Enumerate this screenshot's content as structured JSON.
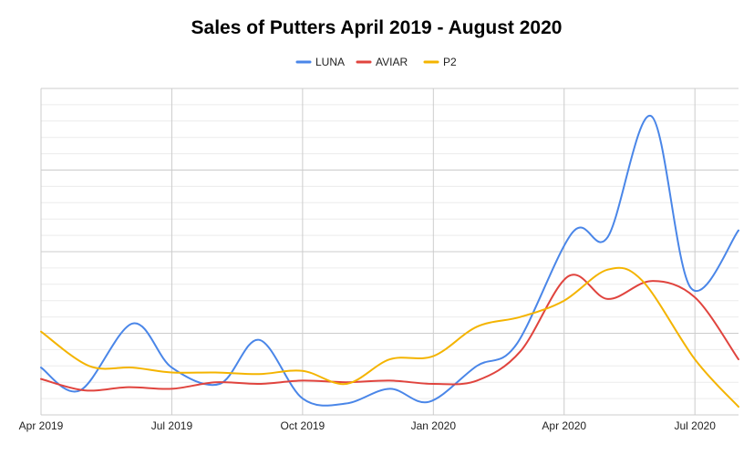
{
  "chart_data": {
    "type": "line",
    "title": "Sales of Putters April 2019 - August 2020",
    "xlabel": "",
    "ylabel": "",
    "x_ticks": [
      "Apr 2019",
      "Jul 2019",
      "Oct 2019",
      "Jan 2020",
      "Apr 2020",
      "Jul 2020"
    ],
    "x_tick_months": [
      0,
      3,
      6,
      9,
      12,
      15
    ],
    "x_range_months": [
      0,
      16
    ],
    "ylim": [
      0,
      20
    ],
    "grid": true,
    "legend_position": "top",
    "series": [
      {
        "name": "LUNA",
        "color": "#4a86e8",
        "x": [
          0,
          0.9,
          2.1,
          3.0,
          4.1,
          5.0,
          6.0,
          7.0,
          8.0,
          8.9,
          10.0,
          10.9,
          12.2,
          13.0,
          14.0,
          14.9,
          16.0
        ],
        "y": [
          2.9,
          1.5,
          5.6,
          2.9,
          1.9,
          4.6,
          1.0,
          0.7,
          1.6,
          0.8,
          3.0,
          4.3,
          11.2,
          10.9,
          18.3,
          7.8,
          11.3
        ]
      },
      {
        "name": "AVIAR",
        "color": "#e0443e",
        "x": [
          0,
          1.0,
          2.0,
          3.0,
          4.0,
          5.0,
          6.0,
          7.0,
          8.0,
          9.0,
          10.0,
          11.0,
          12.1,
          13.0,
          14.0,
          15.0,
          16.0
        ],
        "y": [
          2.2,
          1.5,
          1.7,
          1.6,
          2.0,
          1.9,
          2.1,
          2.0,
          2.1,
          1.9,
          2.1,
          3.9,
          8.5,
          7.1,
          8.2,
          7.2,
          3.4
        ]
      },
      {
        "name": "P2",
        "color": "#f4b400",
        "x": [
          0,
          1.1,
          2.1,
          3.0,
          4.0,
          5.0,
          6.0,
          7.0,
          8.0,
          9.0,
          10.0,
          11.0,
          12.0,
          13.0,
          13.8,
          15.0,
          16.0
        ],
        "y": [
          5.1,
          3.0,
          2.9,
          2.6,
          2.6,
          2.5,
          2.7,
          1.9,
          3.4,
          3.6,
          5.4,
          6.0,
          7.0,
          8.9,
          8.2,
          3.4,
          0.5
        ]
      }
    ]
  }
}
